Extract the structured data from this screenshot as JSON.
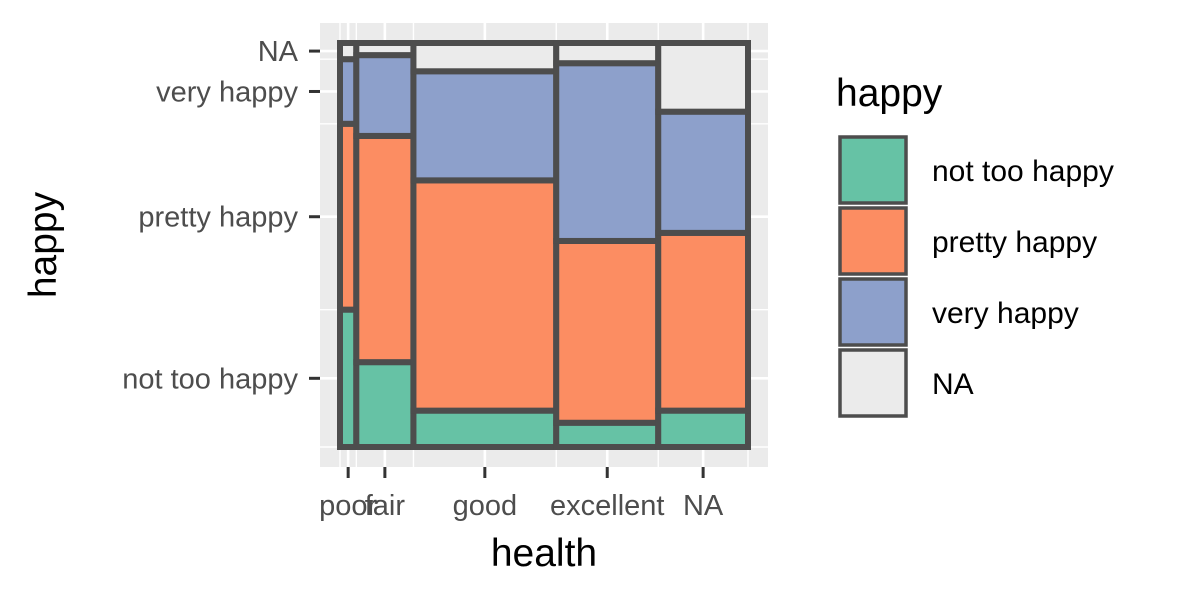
{
  "chart_data": {
    "type": "mosaic",
    "xlabel": "health",
    "ylabel": "happy",
    "x_categories": [
      "poor",
      "fair",
      "good",
      "excellent",
      "NA"
    ],
    "y_categories": [
      "not too happy",
      "pretty happy",
      "very happy",
      "NA"
    ],
    "x_widths": [
      0.04,
      0.14,
      0.35,
      0.25,
      0.22
    ],
    "proportions": [
      [
        0.34,
        0.46,
        0.16,
        0.04
      ],
      [
        0.21,
        0.56,
        0.2,
        0.03
      ],
      [
        0.09,
        0.57,
        0.27,
        0.07
      ],
      [
        0.06,
        0.45,
        0.44,
        0.05
      ],
      [
        0.09,
        0.44,
        0.3,
        0.17
      ]
    ],
    "axis_range": {
      "x": [
        0,
        1
      ],
      "y": [
        0,
        1
      ]
    },
    "grid": true,
    "legend": {
      "title": "happy",
      "position": "right",
      "entries": [
        {
          "label": "not too happy",
          "color": "#66c2a5"
        },
        {
          "label": "pretty happy",
          "color": "#fc8d62"
        },
        {
          "label": "very happy",
          "color": "#8da0cb"
        },
        {
          "label": "NA",
          "color": "#ebebeb"
        }
      ]
    },
    "colors": {
      "panel_background": "#ebebeb",
      "grid": "#ffffff",
      "tile_border": "#4d4d4d",
      "tick_label": "#4d4d4d"
    }
  }
}
